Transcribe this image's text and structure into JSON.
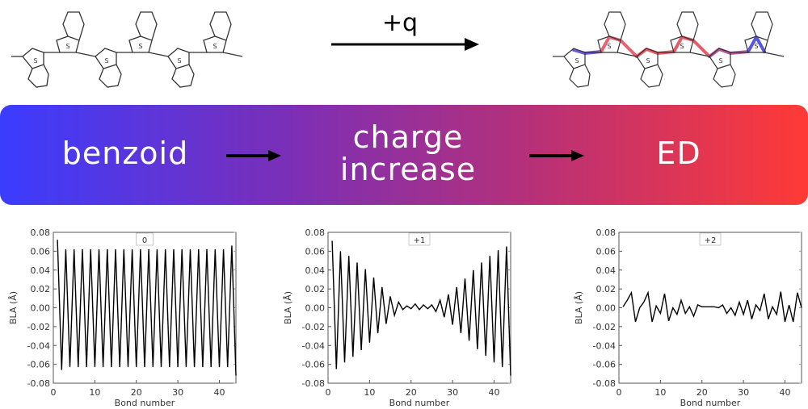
{
  "top": {
    "arrow_label": "+q"
  },
  "banner": {
    "left_label": "benzoid",
    "mid_label_line1": "charge",
    "mid_label_line2": "increase",
    "right_label": "ED",
    "colors": {
      "start": "#3b3cff",
      "end": "#ff3a36"
    }
  },
  "chart_data": [
    {
      "type": "line",
      "label": "0",
      "xlabel": "Bond number",
      "ylabel": "BLA (Å)",
      "xlim": [
        0,
        44
      ],
      "ylim": [
        -0.08,
        0.08
      ],
      "xticks": [
        0,
        10,
        20,
        30,
        40
      ],
      "yticks": [
        0.08,
        0.06,
        0.04,
        0.02,
        0.0,
        -0.02,
        -0.04,
        -0.06,
        -0.08
      ],
      "x": [
        1,
        2,
        3,
        4,
        5,
        6,
        7,
        8,
        9,
        10,
        11,
        12,
        13,
        14,
        15,
        16,
        17,
        18,
        19,
        20,
        21,
        22,
        23,
        24,
        25,
        26,
        27,
        28,
        29,
        30,
        31,
        32,
        33,
        34,
        35,
        36,
        37,
        38,
        39,
        40,
        41,
        42,
        43,
        44
      ],
      "y": [
        0.072,
        -0.066,
        0.062,
        -0.063,
        0.062,
        -0.063,
        0.062,
        -0.063,
        0.062,
        -0.063,
        0.062,
        -0.063,
        0.062,
        -0.063,
        0.062,
        -0.063,
        0.062,
        -0.063,
        0.062,
        -0.063,
        0.062,
        -0.063,
        0.062,
        -0.063,
        0.062,
        -0.063,
        0.062,
        -0.063,
        0.062,
        -0.063,
        0.062,
        -0.063,
        0.062,
        -0.063,
        0.062,
        -0.063,
        0.062,
        -0.063,
        0.062,
        -0.063,
        0.062,
        -0.063,
        0.066,
        -0.072
      ]
    },
    {
      "type": "line",
      "label": "+1",
      "xlabel": "Bond number",
      "ylabel": "BLA (Å)",
      "xlim": [
        0,
        44
      ],
      "ylim": [
        -0.08,
        0.08
      ],
      "xticks": [
        0,
        10,
        20,
        30,
        40
      ],
      "yticks": [
        0.08,
        0.06,
        0.04,
        0.02,
        0.0,
        -0.02,
        -0.04,
        -0.06,
        -0.08
      ],
      "x": [
        1,
        2,
        3,
        4,
        5,
        6,
        7,
        8,
        9,
        10,
        11,
        12,
        13,
        14,
        15,
        16,
        17,
        18,
        19,
        20,
        21,
        22,
        23,
        24,
        25,
        26,
        27,
        28,
        29,
        30,
        31,
        32,
        33,
        34,
        35,
        36,
        37,
        38,
        39,
        40,
        41,
        42,
        43,
        44
      ],
      "y": [
        0.071,
        -0.065,
        0.06,
        -0.058,
        0.055,
        -0.052,
        0.048,
        -0.045,
        0.041,
        -0.037,
        0.032,
        -0.027,
        0.022,
        -0.017,
        0.012,
        -0.008,
        0.006,
        -0.002,
        0.002,
        -0.001,
        0.004,
        -0.002,
        0.003,
        -0.001,
        0.003,
        -0.004,
        0.008,
        -0.01,
        0.014,
        -0.018,
        0.022,
        -0.027,
        0.031,
        -0.035,
        0.04,
        -0.044,
        0.048,
        -0.051,
        0.055,
        -0.058,
        0.061,
        -0.063,
        0.065,
        -0.072
      ]
    },
    {
      "type": "line",
      "label": "+2",
      "xlabel": "Bond number",
      "ylabel": "BLA (Å)",
      "xlim": [
        0,
        44
      ],
      "ylim": [
        -0.08,
        0.08
      ],
      "xticks": [
        0,
        10,
        20,
        30,
        40
      ],
      "yticks": [
        0.08,
        0.06,
        0.04,
        0.02,
        0.0,
        -0.02,
        -0.04,
        -0.06,
        -0.08
      ],
      "x": [
        1,
        2,
        3,
        4,
        5,
        6,
        7,
        8,
        9,
        10,
        11,
        12,
        13,
        14,
        15,
        16,
        17,
        18,
        19,
        20,
        21,
        22,
        23,
        24,
        25,
        26,
        27,
        28,
        29,
        30,
        31,
        32,
        33,
        34,
        35,
        36,
        37,
        38,
        39,
        40,
        41,
        42,
        43,
        44
      ],
      "y": [
        0.001,
        0.008,
        0.016,
        -0.015,
        0.0,
        0.006,
        0.016,
        -0.015,
        0.002,
        -0.006,
        0.015,
        -0.014,
        0.0,
        -0.007,
        0.008,
        -0.006,
        0.001,
        -0.009,
        0.003,
        0.001,
        0.001,
        0.001,
        0.001,
        0.0,
        0.003,
        -0.006,
        0.0,
        -0.008,
        0.006,
        -0.007,
        0.008,
        -0.012,
        0.003,
        -0.003,
        0.015,
        -0.012,
        0.001,
        -0.007,
        0.017,
        -0.015,
        0.003,
        -0.015,
        0.016,
        0.0
      ]
    }
  ]
}
